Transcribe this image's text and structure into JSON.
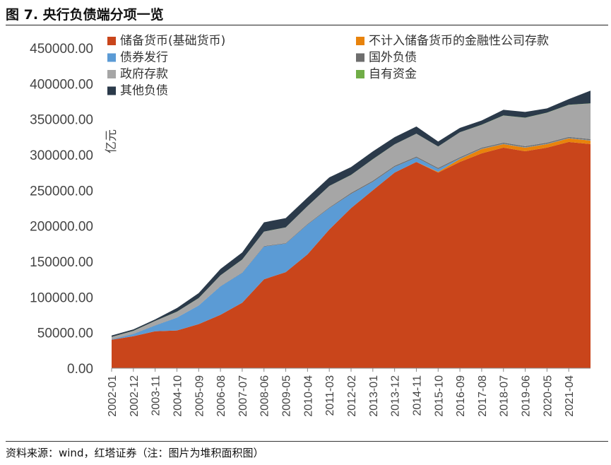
{
  "header": {
    "title": "图 7. 央行负债端分项一览"
  },
  "footer": {
    "source": "资料来源：wind，红塔证券（注：图片为堆积面积图）"
  },
  "chart_data": {
    "type": "area",
    "stacked": true,
    "ylabel": "亿元",
    "ylim": [
      0,
      450000
    ],
    "yticks": [
      "0.00",
      "50000.00",
      "100000.00",
      "150000.00",
      "200000.00",
      "250000.00",
      "300000.00",
      "350000.00",
      "400000.00",
      "450000.00"
    ],
    "xtick_labels": [
      "2002-01",
      "2002-12",
      "2003-11",
      "2004-10",
      "2005-09",
      "2006-08",
      "2007-07",
      "2008-06",
      "2009-05",
      "2010-04",
      "2011-03",
      "2012-02",
      "2013-01",
      "2013-12",
      "2014-11",
      "2015-10",
      "2016-09",
      "2017-08",
      "2018-07",
      "2019-06",
      "2020-05",
      "2021-04"
    ],
    "x": [
      "2002-01",
      "2002-12",
      "2003-11",
      "2004-10",
      "2005-09",
      "2006-08",
      "2007-07",
      "2008-06",
      "2009-05",
      "2010-04",
      "2011-03",
      "2012-02",
      "2013-01",
      "2013-12",
      "2014-11",
      "2015-10",
      "2016-09",
      "2017-08",
      "2018-07",
      "2019-06",
      "2020-05",
      "2021-04",
      "2021-10"
    ],
    "series": [
      {
        "name": "储备货币(基础货币)",
        "color": "#C9451B",
        "values": [
          40000,
          45000,
          52000,
          53000,
          62000,
          75000,
          92000,
          125000,
          135000,
          160000,
          195000,
          225000,
          250000,
          275000,
          290000,
          275000,
          290000,
          302000,
          310000,
          305000,
          310000,
          318000,
          315000
        ]
      },
      {
        "name": "不计入储备货币的金融性公司存款",
        "color": "#E8830C",
        "values": [
          0,
          0,
          0,
          0,
          0,
          0,
          0,
          0,
          0,
          0,
          0,
          0,
          0,
          0,
          0,
          1000,
          4000,
          6000,
          5000,
          5000,
          5000,
          5000,
          5000
        ]
      },
      {
        "name": "债券发行",
        "color": "#5B9BD5",
        "values": [
          500,
          3000,
          8000,
          18000,
          26000,
          40000,
          42000,
          46000,
          40000,
          42000,
          30000,
          20000,
          12000,
          8000,
          6000,
          4000,
          1000,
          500,
          500,
          500,
          500,
          500,
          500
        ]
      },
      {
        "name": "国外负债",
        "color": "#6E6E6E",
        "values": [
          300,
          300,
          300,
          300,
          300,
          300,
          500,
          800,
          800,
          700,
          1000,
          1500,
          1500,
          1500,
          1500,
          1500,
          1500,
          1500,
          1500,
          1500,
          1500,
          1500,
          1500
        ]
      },
      {
        "name": "政府存款",
        "color": "#A6A6A6",
        "values": [
          3000,
          4000,
          6000,
          8000,
          10000,
          15000,
          18000,
          20000,
          22000,
          25000,
          30000,
          25000,
          30000,
          30000,
          32000,
          30000,
          35000,
          32000,
          38000,
          40000,
          42000,
          45000,
          50000
        ]
      },
      {
        "name": "自有资金",
        "color": "#70AD47",
        "values": [
          200,
          200,
          200,
          200,
          200,
          200,
          200,
          200,
          200,
          200,
          200,
          200,
          200,
          200,
          200,
          200,
          200,
          200,
          200,
          200,
          200,
          200,
          200
        ]
      },
      {
        "name": "其他负债",
        "color": "#2B3A4A",
        "values": [
          2000,
          2000,
          2000,
          5000,
          7000,
          9000,
          10000,
          13000,
          13000,
          12000,
          12000,
          11000,
          11000,
          10000,
          10000,
          7000,
          6000,
          6000,
          8000,
          8000,
          6000,
          8000,
          18000
        ]
      }
    ]
  }
}
